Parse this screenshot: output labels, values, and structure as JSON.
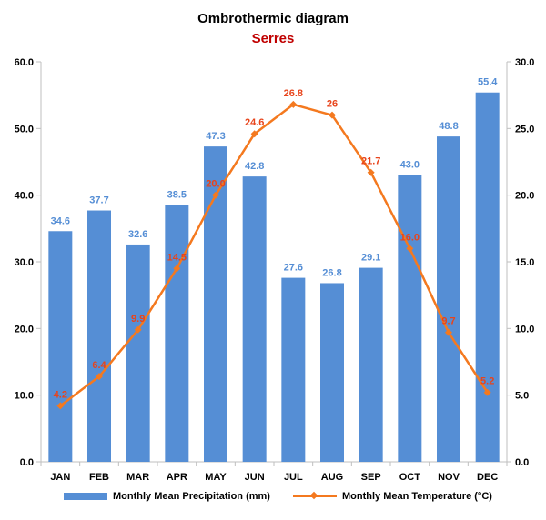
{
  "chart_data": {
    "type": "bar+line",
    "title": "Ombrothermic diagram",
    "subtitle": "Serres",
    "categories": [
      "JAN",
      "FEB",
      "MAR",
      "APR",
      "MAY",
      "JUN",
      "JUL",
      "AUG",
      "SEP",
      "OCT",
      "NOV",
      "DEC"
    ],
    "series": [
      {
        "name": "Monthly Mean Precipitation (mm)",
        "type": "bar",
        "axis": "left",
        "color": "#558ed5",
        "label_color": "#558ed5",
        "values": [
          34.6,
          37.7,
          32.6,
          38.5,
          47.3,
          42.8,
          27.6,
          26.8,
          29.1,
          43.0,
          48.8,
          55.4
        ],
        "labels": [
          "34.6",
          "37.7",
          "32.6",
          "38.5",
          "47.3",
          "42.8",
          "27.6",
          "26.8",
          "29.1",
          "43.0",
          "48.8",
          "55.4"
        ]
      },
      {
        "name": "Monthly Mean Temperature (°C)",
        "type": "line",
        "axis": "right",
        "color": "#f4791f",
        "label_color": "#e8441b",
        "marker": "diamond",
        "values": [
          4.2,
          6.4,
          9.9,
          14.5,
          20.0,
          24.6,
          26.8,
          26.0,
          21.7,
          16.0,
          9.7,
          5.2
        ],
        "labels": [
          "4.2",
          "6.4",
          "9.9",
          "14.5",
          "20.0",
          "24.6",
          "26.8",
          "26",
          "21.7",
          "16.0",
          "9.7",
          "5.2"
        ]
      }
    ],
    "y_left": {
      "min": 0,
      "max": 60,
      "ticks": [
        "0.0",
        "10.0",
        "20.0",
        "30.0",
        "40.0",
        "50.0",
        "60.0"
      ]
    },
    "y_right": {
      "min": 0,
      "max": 30,
      "ticks": [
        "0.0",
        "5.0",
        "10.0",
        "15.0",
        "20.0",
        "25.0",
        "30.0"
      ]
    },
    "grid": false,
    "legend_position": "bottom"
  }
}
